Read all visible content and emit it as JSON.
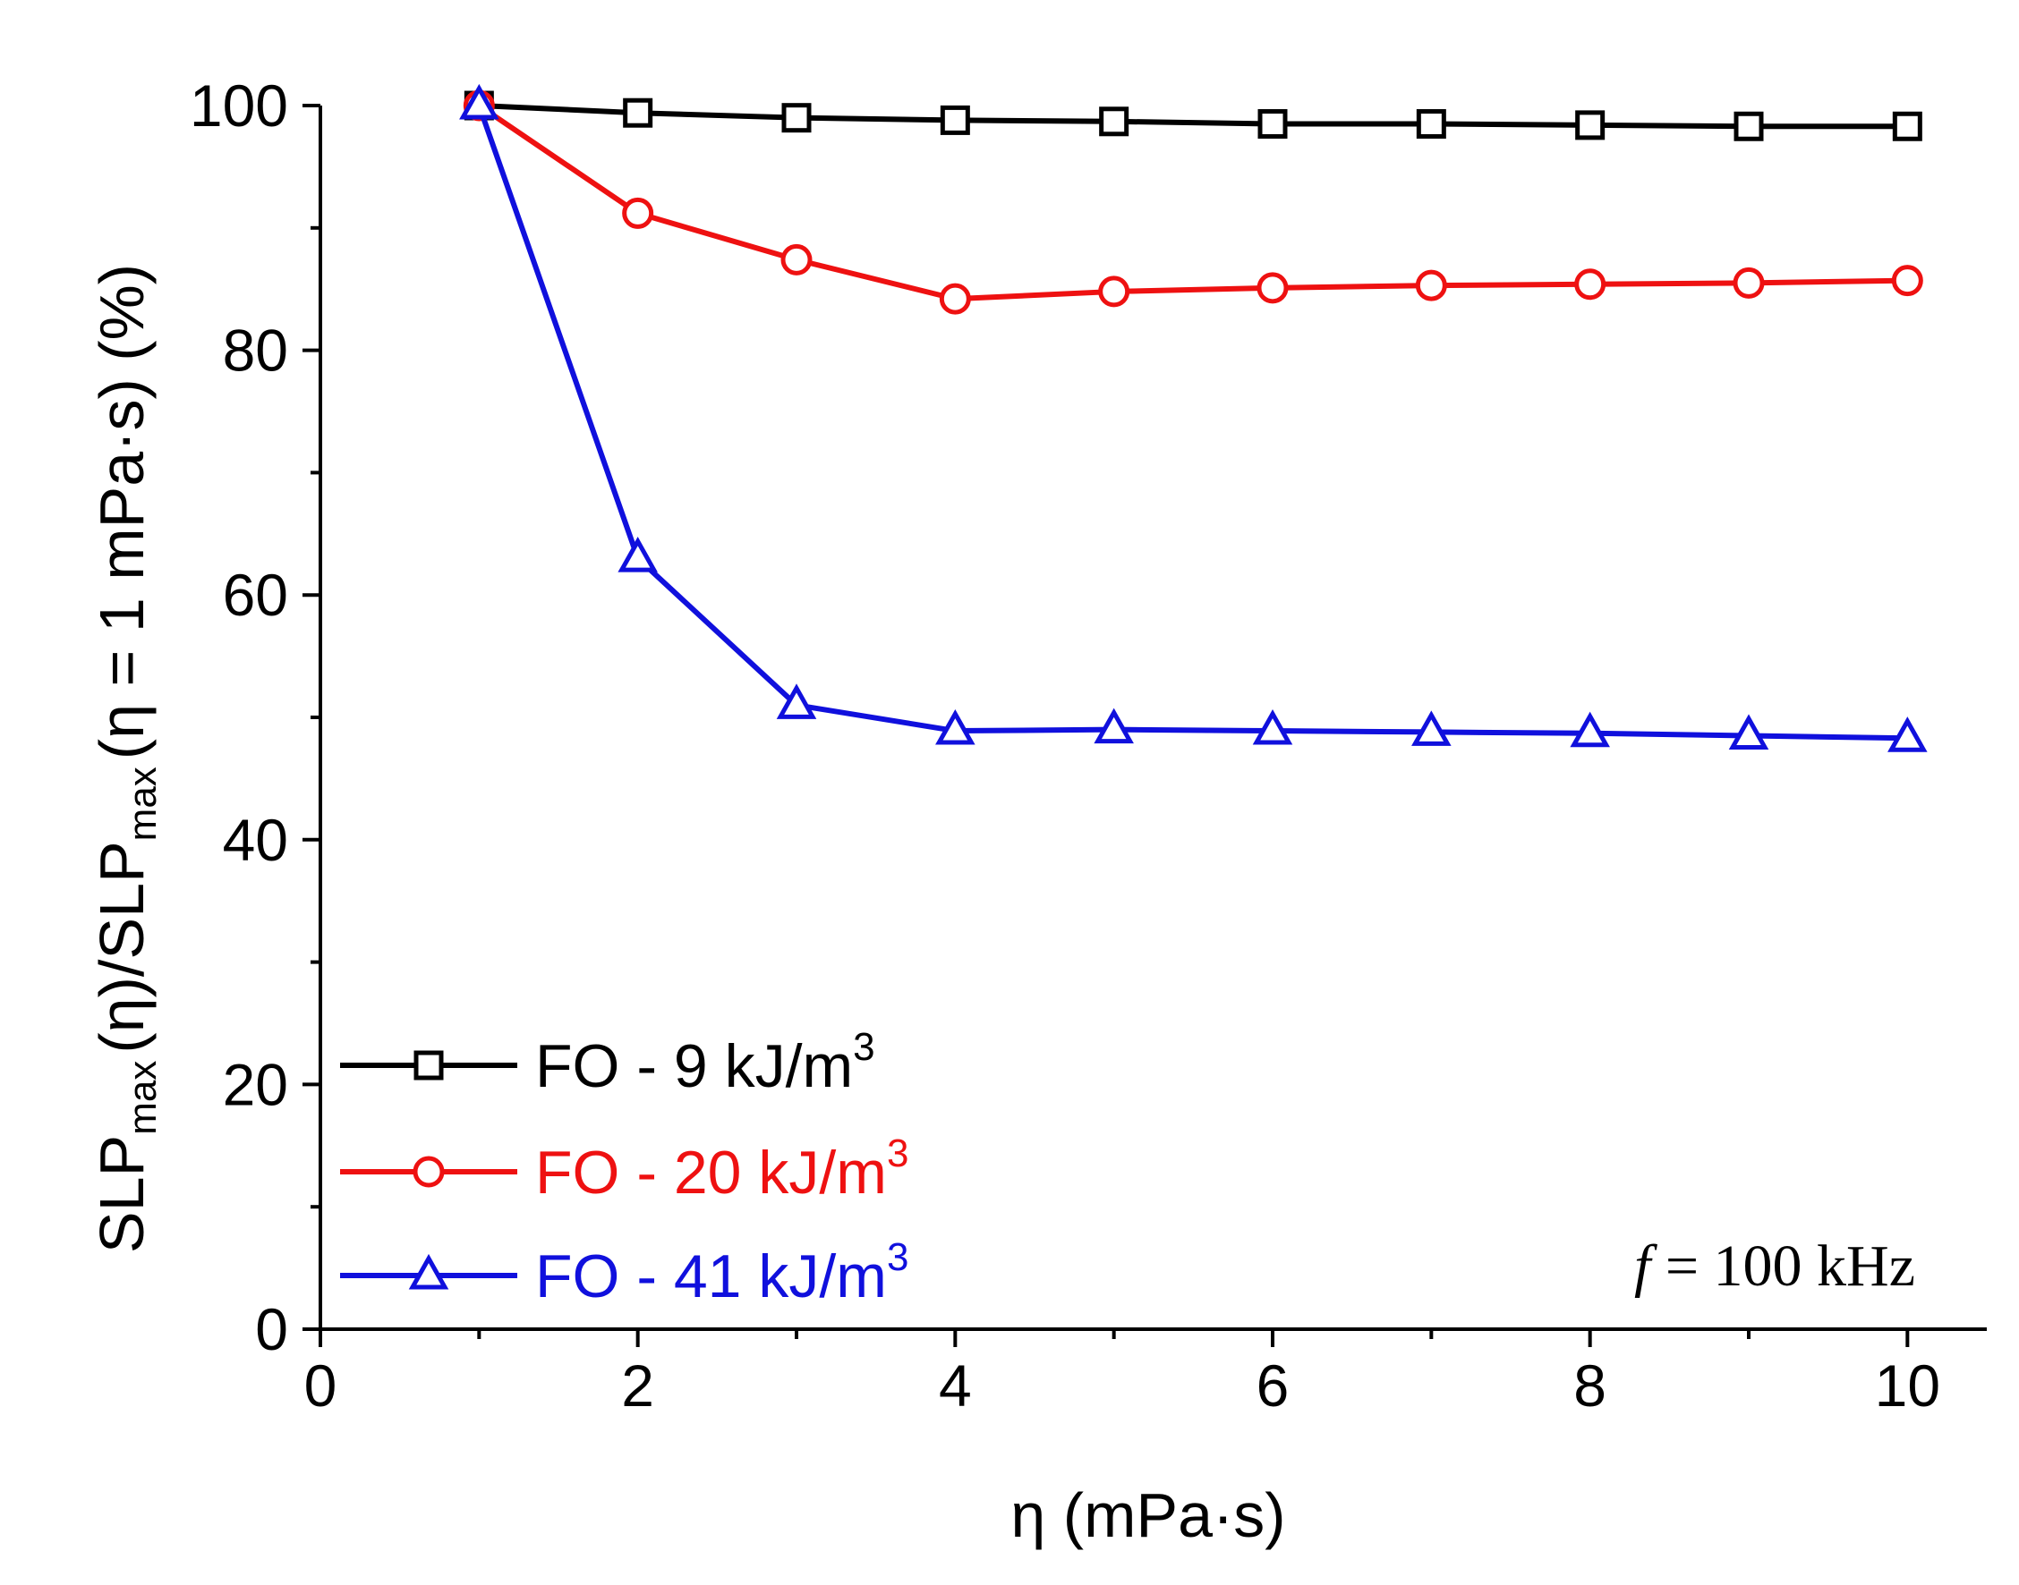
{
  "chart_data": {
    "type": "line",
    "title": "",
    "xlabel": "η (mPa·s)",
    "ylabel_parts": {
      "slp1": "SLP",
      "max1": "max",
      "mid": "(η)/SLP",
      "max2": "max",
      "tail": "(η = 1 mPa·s) (%)"
    },
    "xlim": [
      0,
      10.5
    ],
    "ylim": [
      0,
      100
    ],
    "x_ticks": [
      "0",
      "2",
      "4",
      "6",
      "8",
      "10"
    ],
    "y_ticks": [
      "0",
      "20",
      "40",
      "60",
      "80",
      "100"
    ],
    "x": [
      1,
      2,
      3,
      4,
      5,
      6,
      7,
      8,
      9,
      10
    ],
    "series": [
      {
        "name": "FO - 9 kJ/m³",
        "label_main": "FO - 9 kJ/m",
        "label_sup": "3",
        "color": "#000000",
        "marker": "square",
        "values": [
          100,
          99.4,
          99.0,
          98.8,
          98.7,
          98.5,
          98.5,
          98.4,
          98.3,
          98.3
        ]
      },
      {
        "name": "FO - 20 kJ/m³",
        "label_main": "FO - 20 kJ/m",
        "label_sup": "3",
        "color": "#ee1111",
        "marker": "circle",
        "values": [
          100,
          91.2,
          87.4,
          84.2,
          84.8,
          85.1,
          85.3,
          85.4,
          85.5,
          85.7
        ]
      },
      {
        "name": "FO - 41 kJ/m³",
        "label_main": "FO - 41 kJ/m",
        "label_sup": "3",
        "color": "#1010dd",
        "marker": "triangle",
        "values": [
          100,
          63.0,
          51.0,
          48.9,
          49.0,
          48.9,
          48.8,
          48.7,
          48.5,
          48.3
        ]
      }
    ],
    "annotation": {
      "italic": "f",
      "text": " = 100 kHz"
    },
    "legend_position": "bottom-left"
  }
}
